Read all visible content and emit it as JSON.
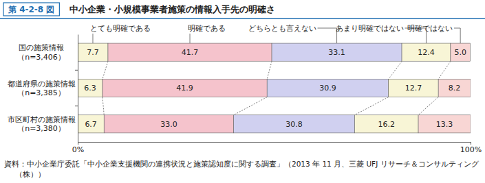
{
  "chart_data": {
    "type": "bar",
    "title": "中小企業・小規模事業者施策の情報入手先の明確さ",
    "annotations": [
      "第 4-2-8 図",
      "資料：中小企業庁委託「中小企業支援機関の連携状況と施策認知度に関する調査」（2013 年 11 月、三菱 UFJ リサーチ＆コンサルティング（株））"
    ],
    "orientation": "horizontal",
    "stacked": true,
    "data_labels": true,
    "legend": "top",
    "grid": false,
    "categories": [
      "国の施策情報\n（n=3,406）",
      "都道府県の施策情報\n（n=3,385）",
      "市区町村の施策情報\n（n=3,380）"
    ],
    "xlim": [
      0,
      100
    ],
    "xticks": [
      {
        "value": 0,
        "label": "0%"
      },
      {
        "value": 100,
        "label": "100%"
      }
    ],
    "series": [
      {
        "name": "とても明確である",
        "color": "#f8f5d6",
        "values": [
          7.7,
          6.3,
          6.7
        ],
        "value_labels": [
          "7.7",
          "6.3",
          "6.7"
        ]
      },
      {
        "name": "明確である",
        "color": "#f5c3cc",
        "values": [
          41.7,
          41.9,
          33.0
        ],
        "value_labels": [
          "41.7",
          "41.9",
          "33.0"
        ]
      },
      {
        "name": "どちらとも言えない",
        "color": "#d0d0f0",
        "values": [
          33.1,
          30.9,
          30.8
        ],
        "value_labels": [
          "33.1",
          "30.9",
          "30.8"
        ]
      },
      {
        "name": "あまり明確ではない",
        "color": "#f8f5d6",
        "values": [
          12.4,
          12.7,
          16.2
        ],
        "value_labels": [
          "12.4",
          "12.7",
          "16.2"
        ]
      },
      {
        "name": "明確ではない",
        "color": "#f8d6d4",
        "values": [
          5.0,
          8.2,
          13.3
        ],
        "value_labels": [
          "5.0",
          "8.2",
          "13.3"
        ]
      }
    ]
  }
}
